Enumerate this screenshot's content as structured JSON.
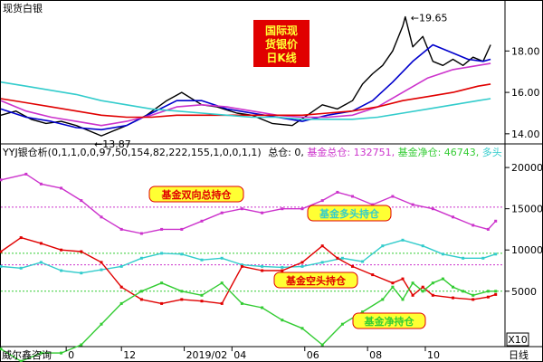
{
  "window": {
    "instrument": "现货白银",
    "big_title_lines": [
      "国际现",
      "货银价",
      "日K线"
    ],
    "indicator_header": "YYJ银仓析(0,1,1,0,0,97,50,154,82,222,155,1,0,0,1,1)",
    "header_zongcang": "总仓: 0,",
    "header_jijinzong": "基金总仓: 132751,",
    "header_jijinjing": "基金净仓: 46743,",
    "header_duotou": "多头",
    "brand": "威尔鑫咨询",
    "period_label": "日线",
    "scale_label": "X10",
    "colors": {
      "accent_red": "#e00000",
      "price_blue": "#0000cc",
      "cyan": "#33cccc",
      "magenta": "#cc33cc",
      "green": "#33cc33",
      "label_bg": "#ffff33"
    }
  },
  "chart_data": [
    {
      "type": "line",
      "title": "国际现货银价日K线",
      "yticks": [
        "14.00",
        "16.00",
        "18.00"
      ],
      "ylim": [
        13.6,
        20.2
      ],
      "annotations": [
        {
          "text": "19.65",
          "x": 0.805,
          "y": 19.65,
          "kind": "high"
        },
        {
          "text": "13.87",
          "x": 0.2,
          "y": 13.87,
          "kind": "low"
        }
      ],
      "series": [
        {
          "role": "price",
          "color": "#000000",
          "x": [
            0,
            0.03,
            0.06,
            0.09,
            0.12,
            0.15,
            0.2,
            0.25,
            0.29,
            0.33,
            0.36,
            0.4,
            0.43,
            0.47,
            0.5,
            0.54,
            0.58,
            0.61,
            0.64,
            0.67,
            0.7,
            0.72,
            0.74,
            0.76,
            0.78,
            0.8,
            0.805,
            0.82,
            0.84,
            0.86,
            0.88,
            0.9,
            0.92,
            0.94,
            0.96,
            0.975
          ],
          "y": [
            14.9,
            15.1,
            14.7,
            14.5,
            14.6,
            14.4,
            13.9,
            14.4,
            14.9,
            15.6,
            16.0,
            15.4,
            15.3,
            15.0,
            14.9,
            14.5,
            14.4,
            14.9,
            15.4,
            15.2,
            15.6,
            16.4,
            16.9,
            17.3,
            18.0,
            19.2,
            19.65,
            18.2,
            18.7,
            17.5,
            17.3,
            17.6,
            17.3,
            17.7,
            17.5,
            18.3
          ]
        },
        {
          "role": "ma_short",
          "color": "#0000cc",
          "x": [
            0,
            0.05,
            0.1,
            0.15,
            0.2,
            0.25,
            0.3,
            0.35,
            0.4,
            0.45,
            0.5,
            0.55,
            0.6,
            0.65,
            0.7,
            0.74,
            0.78,
            0.82,
            0.86,
            0.9,
            0.93,
            0.96,
            0.975
          ],
          "y": [
            15.2,
            14.8,
            14.6,
            14.3,
            14.2,
            14.4,
            15.0,
            15.6,
            15.6,
            15.2,
            15.0,
            14.8,
            14.6,
            14.9,
            15.1,
            15.6,
            16.5,
            17.5,
            18.3,
            17.9,
            17.6,
            17.5,
            17.6
          ]
        },
        {
          "role": "ma_mid",
          "color": "#cc33cc",
          "x": [
            0,
            0.05,
            0.1,
            0.15,
            0.2,
            0.25,
            0.3,
            0.35,
            0.4,
            0.45,
            0.5,
            0.55,
            0.6,
            0.65,
            0.7,
            0.75,
            0.8,
            0.85,
            0.9,
            0.95,
            0.975
          ],
          "y": [
            15.6,
            15.1,
            14.8,
            14.6,
            14.4,
            14.6,
            14.9,
            15.3,
            15.4,
            15.3,
            15.1,
            14.9,
            14.8,
            14.8,
            14.9,
            15.3,
            16.0,
            16.7,
            17.1,
            17.3,
            17.4
          ]
        },
        {
          "role": "ma_long_red",
          "color": "#e00000",
          "x": [
            0,
            0.05,
            0.1,
            0.15,
            0.2,
            0.25,
            0.3,
            0.35,
            0.4,
            0.45,
            0.5,
            0.55,
            0.6,
            0.65,
            0.7,
            0.75,
            0.8,
            0.85,
            0.9,
            0.95,
            0.975
          ],
          "y": [
            15.7,
            15.5,
            15.3,
            15.1,
            14.9,
            14.8,
            14.8,
            14.9,
            14.9,
            14.9,
            14.9,
            14.9,
            14.9,
            15.0,
            15.1,
            15.3,
            15.6,
            15.8,
            16.0,
            16.3,
            16.4
          ]
        },
        {
          "role": "ma_long_cyan",
          "color": "#33cccc",
          "x": [
            0,
            0.05,
            0.1,
            0.15,
            0.2,
            0.25,
            0.3,
            0.35,
            0.4,
            0.45,
            0.5,
            0.55,
            0.6,
            0.65,
            0.7,
            0.75,
            0.8,
            0.85,
            0.9,
            0.95,
            0.975
          ],
          "y": [
            16.5,
            16.3,
            16.1,
            15.9,
            15.6,
            15.4,
            15.2,
            15.1,
            15.0,
            14.9,
            14.8,
            14.8,
            14.7,
            14.7,
            14.7,
            14.8,
            15.0,
            15.2,
            15.4,
            15.6,
            15.7
          ]
        }
      ]
    },
    {
      "type": "line",
      "title": "YYJ银仓析",
      "yticks": [
        "5000",
        "10000",
        "15000",
        "20000"
      ],
      "ylim": [
        -1500,
        21000
      ],
      "scale_note": "X10",
      "hlines": [
        {
          "y": 15200,
          "color": "#cc33cc"
        },
        {
          "y": 9600,
          "color": "#33cc33"
        },
        {
          "y": 8200,
          "color": "#cc33cc"
        },
        {
          "y": 5000,
          "color": "#33cc33"
        }
      ],
      "series": [
        {
          "name": "基金双向总持仓",
          "color": "#cc33cc",
          "x": [
            0,
            0.05,
            0.08,
            0.12,
            0.16,
            0.2,
            0.24,
            0.28,
            0.32,
            0.36,
            0.4,
            0.44,
            0.48,
            0.52,
            0.56,
            0.6,
            0.64,
            0.67,
            0.7,
            0.74,
            0.78,
            0.82,
            0.86,
            0.9,
            0.94,
            0.97,
            0.985
          ],
          "y": [
            18500,
            19200,
            18000,
            17500,
            16000,
            14000,
            12500,
            12000,
            12500,
            12500,
            13500,
            14500,
            15000,
            14500,
            15000,
            15000,
            16000,
            17000,
            16500,
            15500,
            16500,
            15500,
            15000,
            14000,
            13000,
            12500,
            13500
          ]
        },
        {
          "name": "基金多头持仓",
          "color": "#33cccc",
          "x": [
            0,
            0.04,
            0.08,
            0.12,
            0.16,
            0.2,
            0.24,
            0.28,
            0.32,
            0.36,
            0.4,
            0.44,
            0.48,
            0.52,
            0.56,
            0.6,
            0.64,
            0.68,
            0.72,
            0.76,
            0.8,
            0.84,
            0.88,
            0.92,
            0.96,
            0.985
          ],
          "y": [
            8000,
            7800,
            8500,
            7500,
            7200,
            7600,
            8000,
            9000,
            9600,
            9500,
            8800,
            9000,
            8200,
            8000,
            7900,
            8000,
            8500,
            9000,
            8600,
            10500,
            11200,
            10500,
            9500,
            9000,
            9000,
            9500
          ]
        },
        {
          "name": "基金空头持仓",
          "color": "#e00000",
          "x": [
            0,
            0.04,
            0.08,
            0.12,
            0.16,
            0.2,
            0.24,
            0.28,
            0.32,
            0.36,
            0.4,
            0.44,
            0.48,
            0.52,
            0.56,
            0.6,
            0.64,
            0.67,
            0.7,
            0.74,
            0.78,
            0.8,
            0.82,
            0.84,
            0.86,
            0.9,
            0.94,
            0.97,
            0.985
          ],
          "y": [
            9800,
            11500,
            10800,
            10000,
            9800,
            8500,
            5500,
            4000,
            3500,
            4000,
            3800,
            3500,
            8000,
            7500,
            7500,
            8500,
            10500,
            9000,
            8000,
            7000,
            6000,
            6500,
            4500,
            5500,
            4500,
            4200,
            4000,
            4300,
            4600
          ]
        },
        {
          "name": "基金净持仓",
          "color": "#33cc33",
          "x": [
            0,
            0.04,
            0.08,
            0.12,
            0.16,
            0.2,
            0.24,
            0.28,
            0.32,
            0.36,
            0.4,
            0.44,
            0.48,
            0.52,
            0.56,
            0.6,
            0.64,
            0.68,
            0.72,
            0.76,
            0.78,
            0.8,
            0.82,
            0.84,
            0.86,
            0.88,
            0.9,
            0.92,
            0.94,
            0.97,
            0.985
          ],
          "y": [
            -2000,
            -3500,
            -2500,
            -2500,
            -1500,
            1000,
            3500,
            5000,
            6000,
            5000,
            4500,
            6000,
            3500,
            3000,
            1500,
            500,
            -1500,
            1000,
            2500,
            4000,
            5500,
            4000,
            6000,
            5000,
            6000,
            6500,
            5500,
            5000,
            4500,
            5000,
            5000
          ]
        }
      ]
    }
  ],
  "series_labels": [
    "基金双向总持仓",
    "基金多头持仓",
    "基金空头持仓",
    "基金净持仓"
  ],
  "x_axis": {
    "ticks": [
      "0",
      "12",
      "2019/02",
      "04",
      "06",
      "08",
      "10"
    ],
    "positions": [
      0.13,
      0.24,
      0.365,
      0.46,
      0.605,
      0.73,
      0.845
    ]
  }
}
